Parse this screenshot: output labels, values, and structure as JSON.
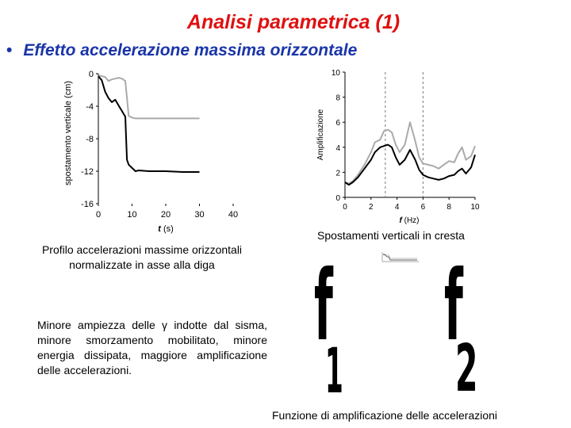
{
  "slide": {
    "title": "Analisi parametrica (1)",
    "bullet": "Effetto accelerazione massima orizzontale",
    "caption_left": "Profilo accelerazioni massime orizzontali normalizzate in asse alla diga",
    "caption_right": "Spostamenti verticali in cresta",
    "paragraph": "Minore ampiezza delle γ indotte dal sisma, minore smorzamento mobilitato, minore energia dissipata, maggiore amplificazione delle accelerazioni.",
    "caption_bottom": "Funzione di amplificazione delle accelerazioni",
    "f1_letter": "f",
    "f1_sub": "1",
    "f2_letter": "f",
    "f2_sub": "2",
    "title_color": "#e01010",
    "bullet_color": "#1a35a8"
  },
  "chart_data": [
    {
      "type": "line",
      "ylabel": "spostamento verticale (cm)",
      "xlabel_italic": "t",
      "xlabel_unit": "(s)",
      "xlim": [
        0,
        40
      ],
      "ylim": [
        -16,
        0
      ],
      "xticks": [
        0,
        10,
        20,
        30,
        40
      ],
      "yticks": [
        0,
        -4,
        -8,
        -12,
        -16
      ],
      "series": [
        {
          "color": "#aaaaaa",
          "x": [
            0,
            2,
            3,
            4,
            5,
            6,
            7,
            8,
            9,
            10,
            11,
            12,
            15,
            20,
            25,
            30
          ],
          "y": [
            -0.2,
            -0.4,
            -0.9,
            -0.7,
            -0.6,
            -0.5,
            -0.6,
            -0.9,
            -5.2,
            -5.4,
            -5.5,
            -5.5,
            -5.5,
            -5.5,
            -5.5,
            -5.5
          ]
        },
        {
          "color": "#000000",
          "x": [
            0,
            1,
            2,
            3,
            4,
            5,
            6,
            7,
            8,
            8.5,
            9,
            10,
            11,
            12,
            15,
            20,
            25,
            30
          ],
          "y": [
            -0.3,
            -0.8,
            -2.2,
            -3.0,
            -3.5,
            -3.2,
            -3.9,
            -4.6,
            -5.3,
            -10.6,
            -11.2,
            -11.6,
            -12.0,
            -11.9,
            -12.0,
            -12.0,
            -12.1,
            -12.1
          ]
        }
      ]
    },
    {
      "type": "line",
      "ylabel": "Amplificazione",
      "xlabel_italic": "f",
      "xlabel_unit": "(Hz)",
      "xlim": [
        0,
        10
      ],
      "ylim": [
        0,
        10
      ],
      "xticks": [
        0,
        2,
        4,
        6,
        8,
        10
      ],
      "yticks": [
        0,
        2,
        4,
        6,
        8,
        10
      ],
      "vlines": [
        3.1,
        6.0
      ],
      "series": [
        {
          "color": "#aaaaaa",
          "x": [
            0,
            0.3,
            0.6,
            1.0,
            1.5,
            2.0,
            2.3,
            2.7,
            3.0,
            3.3,
            3.6,
            3.9,
            4.2,
            4.6,
            5.0,
            5.4,
            5.7,
            6.0,
            6.4,
            6.8,
            7.2,
            7.6,
            8.0,
            8.4,
            8.7,
            9.0,
            9.3,
            9.7,
            10.0
          ],
          "y": [
            1.2,
            1.1,
            1.3,
            1.8,
            2.6,
            3.6,
            4.4,
            4.6,
            5.3,
            5.4,
            5.2,
            4.2,
            3.6,
            4.2,
            6.0,
            4.5,
            3.2,
            2.7,
            2.6,
            2.5,
            2.3,
            2.6,
            2.9,
            2.8,
            3.5,
            4.0,
            3.0,
            3.3,
            4.1
          ]
        },
        {
          "color": "#000000",
          "x": [
            0,
            0.3,
            0.6,
            1.0,
            1.5,
            2.0,
            2.3,
            2.7,
            3.0,
            3.3,
            3.6,
            3.9,
            4.2,
            4.6,
            5.0,
            5.4,
            5.7,
            6.0,
            6.4,
            6.8,
            7.2,
            7.6,
            8.0,
            8.4,
            8.7,
            9.0,
            9.3,
            9.7,
            10.0
          ],
          "y": [
            1.2,
            1.0,
            1.2,
            1.6,
            2.3,
            3.0,
            3.6,
            4.0,
            4.1,
            4.2,
            4.0,
            3.2,
            2.6,
            3.0,
            3.8,
            3.0,
            2.2,
            1.8,
            1.6,
            1.5,
            1.4,
            1.5,
            1.7,
            1.8,
            2.1,
            2.3,
            1.9,
            2.4,
            3.4
          ]
        }
      ]
    }
  ]
}
